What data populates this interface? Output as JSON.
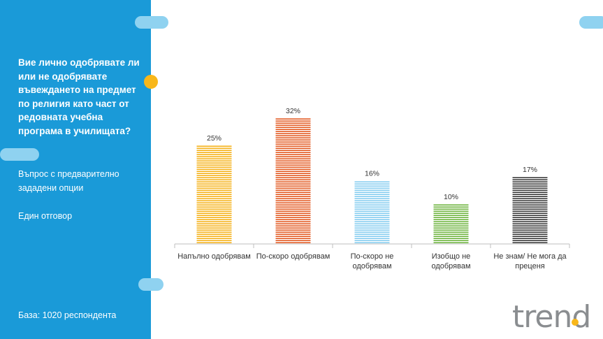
{
  "sidebar": {
    "question": "Вие лично одобрявате ли или не одобрявате въвеждането на предмет по религия като част от редовната учебна програма в училищата?",
    "note1": "Въпрос с предварително зададени опции",
    "note2": "Един отговор",
    "base_label": "База:  1020 респондента"
  },
  "logo": {
    "text": "trend"
  },
  "colors": {
    "sidebar": "#1a9ad8",
    "accent_pill": "#8fd2f0",
    "accent_dot": "#f8b71a"
  },
  "chart_data": {
    "type": "bar",
    "categories": [
      [
        "Напълно одобрявам"
      ],
      [
        "По-скоро одобрявам"
      ],
      [
        "По-скоро не",
        "одобрявам"
      ],
      [
        "Изобщо не",
        "одобрявам"
      ],
      [
        "Не знам/ Не мога да",
        "преценя"
      ]
    ],
    "values": [
      25,
      32,
      16,
      10,
      17
    ],
    "value_labels": [
      "25%",
      "32%",
      "16%",
      "10%",
      "17%"
    ],
    "bar_colors": [
      "#f5b21b",
      "#e35b23",
      "#86cdf0",
      "#6eb43f",
      "#3a3a3a"
    ],
    "ylim": [
      0,
      35
    ],
    "legend": "none",
    "grid": false
  }
}
